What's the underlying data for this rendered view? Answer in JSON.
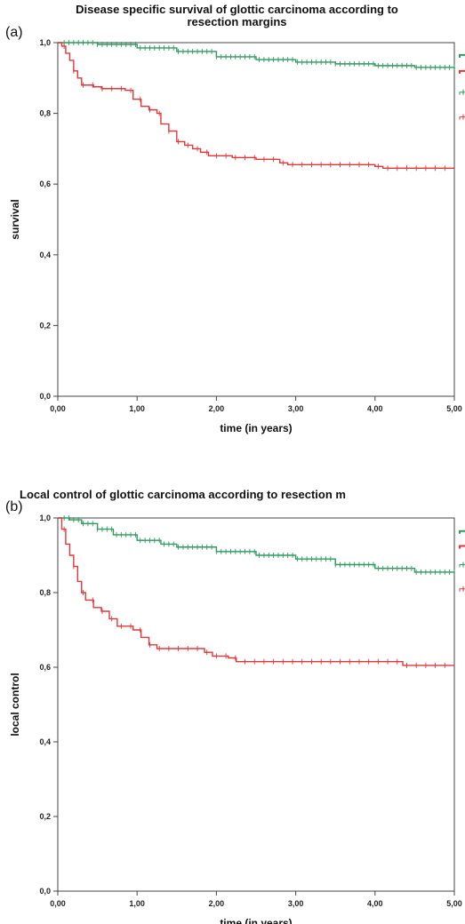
{
  "chart_data": [
    {
      "type": "line",
      "panel_letter": "(a)",
      "title_lines": [
        "Disease specific survival of glottic carcinoma according to",
        "resection margins"
      ],
      "xlabel": "time (in years)",
      "ylabel": "survival",
      "xlim": [
        0,
        5
      ],
      "ylim": [
        0,
        1
      ],
      "x_ticks": [
        "0,00",
        "1,00",
        "2,00",
        "3,00",
        "4,00",
        "5,00"
      ],
      "y_ticks": [
        "0,0",
        "0,2",
        "0,4",
        "0,6",
        "0,8",
        "1,0"
      ],
      "grid": false,
      "series": [
        {
          "color": "#2e9a5e",
          "points": [
            [
              0,
              1.0
            ],
            [
              0.5,
              0.995
            ],
            [
              1.0,
              0.985
            ],
            [
              1.5,
              0.975
            ],
            [
              2.0,
              0.96
            ],
            [
              2.5,
              0.952
            ],
            [
              3.0,
              0.945
            ],
            [
              3.5,
              0.94
            ],
            [
              4.0,
              0.935
            ],
            [
              4.5,
              0.93
            ],
            [
              5.0,
              0.925
            ]
          ]
        },
        {
          "color": "#e0383a",
          "points": [
            [
              0,
              1.0
            ],
            [
              0.05,
              0.99
            ],
            [
              0.1,
              0.97
            ],
            [
              0.15,
              0.95
            ],
            [
              0.2,
              0.92
            ],
            [
              0.25,
              0.9
            ],
            [
              0.3,
              0.88
            ],
            [
              0.45,
              0.875
            ],
            [
              0.55,
              0.87
            ],
            [
              0.85,
              0.865
            ],
            [
              0.95,
              0.84
            ],
            [
              1.05,
              0.82
            ],
            [
              1.15,
              0.81
            ],
            [
              1.25,
              0.8
            ],
            [
              1.3,
              0.77
            ],
            [
              1.4,
              0.75
            ],
            [
              1.5,
              0.72
            ],
            [
              1.6,
              0.71
            ],
            [
              1.7,
              0.7
            ],
            [
              1.8,
              0.69
            ],
            [
              1.9,
              0.68
            ],
            [
              2.2,
              0.675
            ],
            [
              2.5,
              0.67
            ],
            [
              2.8,
              0.66
            ],
            [
              2.9,
              0.655
            ],
            [
              3.5,
              0.655
            ],
            [
              4.0,
              0.65
            ],
            [
              4.1,
              0.645
            ],
            [
              5.0,
              0.645
            ]
          ]
        }
      ],
      "legend_edge_marks": [
        {
          "color": "#2e9a5e",
          "y": 0.965
        },
        {
          "color": "#e0383a",
          "y": 0.92
        },
        {
          "color": "#2e9a5e",
          "y": 0.86
        },
        {
          "color": "#e0383a",
          "y": 0.79
        }
      ]
    },
    {
      "type": "line",
      "panel_letter": "(b)",
      "title_lines": [
        "Local control of glottic carcinoma according to resection m"
      ],
      "xlabel": "time (in years)",
      "ylabel": "local control",
      "xlim": [
        0,
        5
      ],
      "ylim": [
        0,
        1
      ],
      "x_ticks": [
        "0,00",
        "1,00",
        "2,00",
        "3,00",
        "4,00",
        "5,00"
      ],
      "y_ticks": [
        "0,0",
        "0,2",
        "0,4",
        "0,6",
        "0,8",
        "1,0"
      ],
      "grid": false,
      "series": [
        {
          "color": "#2e9a5e",
          "points": [
            [
              0,
              1.0
            ],
            [
              0.15,
              0.995
            ],
            [
              0.3,
              0.985
            ],
            [
              0.5,
              0.97
            ],
            [
              0.7,
              0.955
            ],
            [
              1.0,
              0.94
            ],
            [
              1.3,
              0.93
            ],
            [
              1.5,
              0.922
            ],
            [
              2.0,
              0.91
            ],
            [
              2.5,
              0.9
            ],
            [
              3.0,
              0.89
            ],
            [
              3.5,
              0.875
            ],
            [
              4.0,
              0.865
            ],
            [
              4.5,
              0.855
            ],
            [
              5.0,
              0.85
            ]
          ]
        },
        {
          "color": "#e0383a",
          "points": [
            [
              0,
              1.0
            ],
            [
              0.05,
              0.97
            ],
            [
              0.1,
              0.93
            ],
            [
              0.15,
              0.9
            ],
            [
              0.2,
              0.87
            ],
            [
              0.25,
              0.83
            ],
            [
              0.3,
              0.8
            ],
            [
              0.35,
              0.78
            ],
            [
              0.45,
              0.76
            ],
            [
              0.55,
              0.75
            ],
            [
              0.65,
              0.73
            ],
            [
              0.75,
              0.71
            ],
            [
              0.95,
              0.7
            ],
            [
              1.05,
              0.68
            ],
            [
              1.15,
              0.66
            ],
            [
              1.25,
              0.65
            ],
            [
              1.55,
              0.65
            ],
            [
              1.85,
              0.64
            ],
            [
              1.95,
              0.63
            ],
            [
              2.15,
              0.625
            ],
            [
              2.25,
              0.615
            ],
            [
              2.5,
              0.615
            ],
            [
              3.5,
              0.615
            ],
            [
              4.0,
              0.615
            ],
            [
              4.35,
              0.605
            ],
            [
              5.0,
              0.605
            ]
          ]
        }
      ],
      "legend_edge_marks": [
        {
          "color": "#2e9a5e",
          "y": 0.965
        },
        {
          "color": "#e0383a",
          "y": 0.925
        },
        {
          "color": "#2e9a5e",
          "y": 0.875
        },
        {
          "color": "#e0383a",
          "y": 0.81
        }
      ]
    }
  ]
}
